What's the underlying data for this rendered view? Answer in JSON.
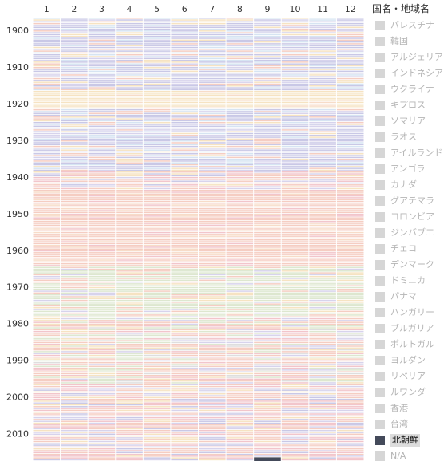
{
  "chart_data": {
    "type": "heatmap",
    "title": "",
    "x_categories": [
      "1",
      "2",
      "3",
      "4",
      "5",
      "6",
      "7",
      "8",
      "9",
      "10",
      "11",
      "12"
    ],
    "y_range": [
      1897,
      2017
    ],
    "y_ticks": [
      1900,
      1910,
      1920,
      1930,
      1940,
      1950,
      1960,
      1970,
      1980,
      1990,
      2000,
      2010
    ],
    "legend_title": "国名・地域名",
    "legend": [
      {
        "label": "パレスチナ",
        "state": "dim"
      },
      {
        "label": "韓国",
        "state": "dim"
      },
      {
        "label": "アルジェリア",
        "state": "dim"
      },
      {
        "label": "インドネシア",
        "state": "dim"
      },
      {
        "label": "ウクライナ",
        "state": "dim"
      },
      {
        "label": "キプロス",
        "state": "dim"
      },
      {
        "label": "ソマリア",
        "state": "dim"
      },
      {
        "label": "ラオス",
        "state": "dim"
      },
      {
        "label": "アイルランド",
        "state": "dim"
      },
      {
        "label": "アンゴラ",
        "state": "dim"
      },
      {
        "label": "カナダ",
        "state": "dim"
      },
      {
        "label": "グアテマラ",
        "state": "dim"
      },
      {
        "label": "コロンビア",
        "state": "dim"
      },
      {
        "label": "ジンバブエ",
        "state": "dim"
      },
      {
        "label": "チェコ",
        "state": "dim"
      },
      {
        "label": "デンマーク",
        "state": "dim"
      },
      {
        "label": "ドミニカ",
        "state": "dim"
      },
      {
        "label": "パナマ",
        "state": "dim"
      },
      {
        "label": "ハンガリー",
        "state": "dim"
      },
      {
        "label": "ブルガリア",
        "state": "dim"
      },
      {
        "label": "ポルトガル",
        "state": "dim"
      },
      {
        "label": "ヨルダン",
        "state": "dim"
      },
      {
        "label": "リベリア",
        "state": "dim"
      },
      {
        "label": "ルワンダ",
        "state": "dim"
      },
      {
        "label": "香港",
        "state": "dim"
      },
      {
        "label": "台湾",
        "state": "dim"
      },
      {
        "label": "北朝鮮",
        "state": "active"
      },
      {
        "label": "N/A",
        "state": "dim"
      }
    ],
    "highlighted": {
      "label": "北朝鮮",
      "color": "#444a5a",
      "x": "9",
      "year": 2017
    },
    "colors": {
      "periods": [
        {
          "from": 1897,
          "to": 1916,
          "pattern": "mixed-blue"
        },
        {
          "from": 1917,
          "to": 1921,
          "pattern": "yellow"
        },
        {
          "from": 1922,
          "to": 1938,
          "pattern": "mixed-blue"
        },
        {
          "from": 1939,
          "to": 1943,
          "pattern": "mixed-pink"
        },
        {
          "from": 1944,
          "to": 1964,
          "pattern": "salmon"
        },
        {
          "from": 1965,
          "to": 1978,
          "pattern": "green"
        },
        {
          "from": 1979,
          "to": 1996,
          "pattern": "mixed-warm"
        },
        {
          "from": 1997,
          "to": 2017,
          "pattern": "mixed-pink"
        }
      ],
      "palette": {
        "blue": "#c9c8e6",
        "lightblue": "#d6e4f2",
        "lavender": "#d7d3ec",
        "yellow": "#f6e3c2",
        "salmon": "#f5cdc2",
        "pink": "#f2c5cb",
        "green": "#dde7cf",
        "peach": "#f7dcc8",
        "gray": "#dedede"
      }
    }
  }
}
